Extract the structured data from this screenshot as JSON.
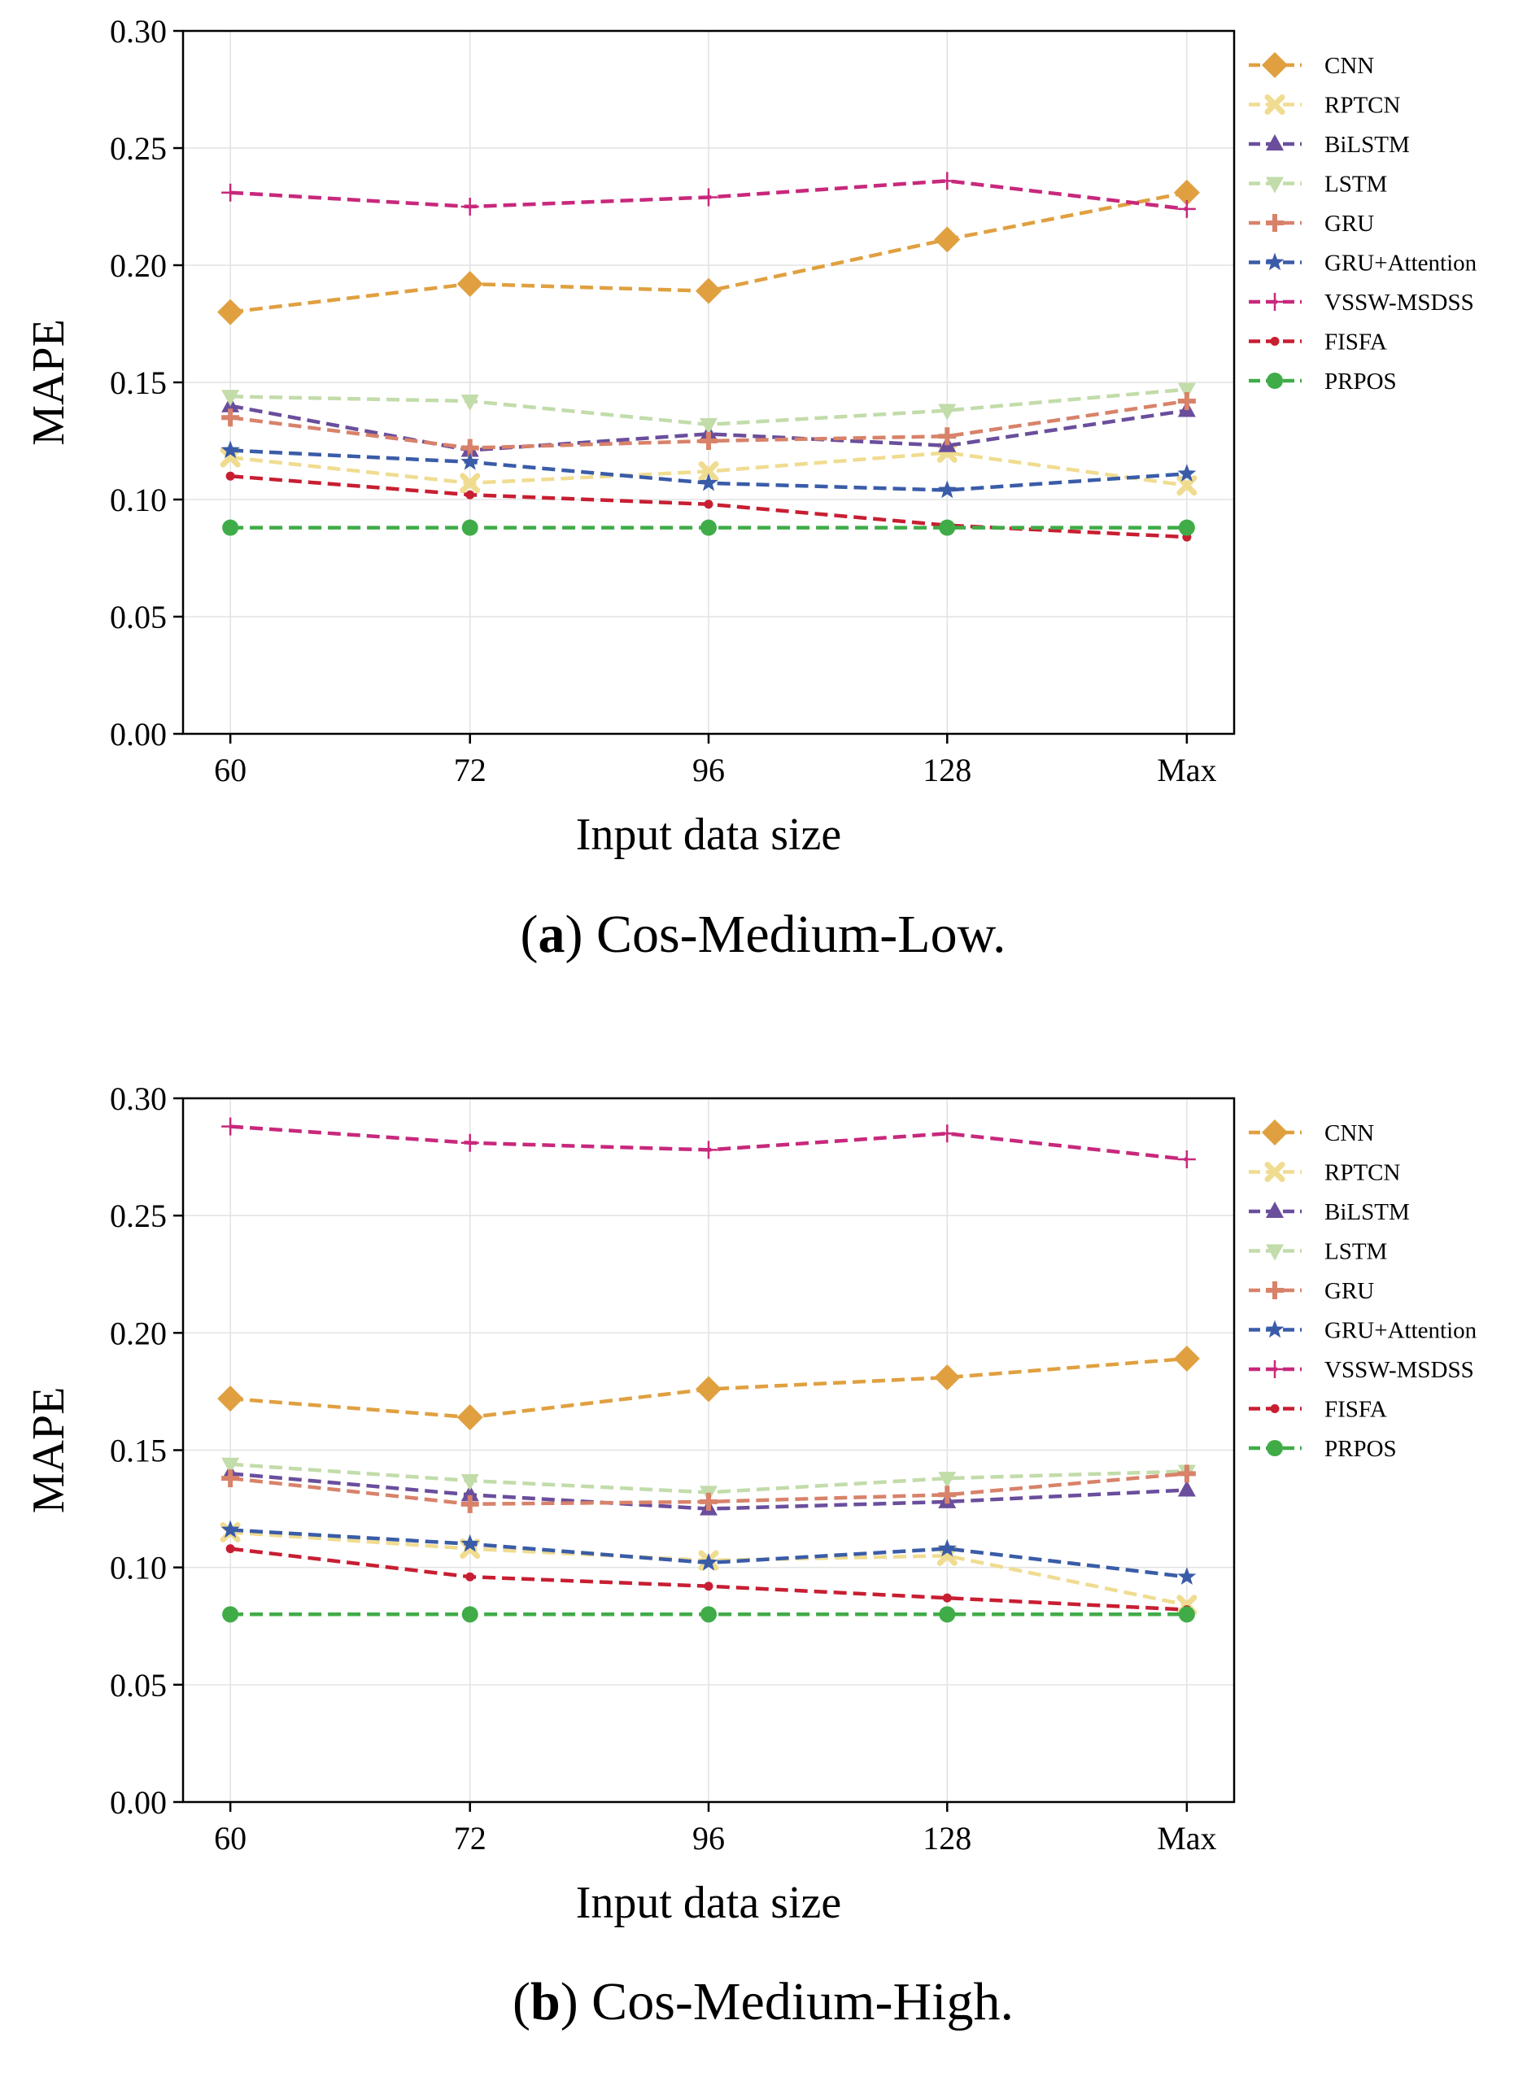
{
  "chart_data": [
    {
      "type": "line",
      "caption_letter": "a",
      "caption_text": "Cos-Medium-Low.",
      "xlabel": "Input data size",
      "ylabel": "MAPE",
      "categories": [
        "60",
        "72",
        "96",
        "128",
        "Max"
      ],
      "ylim": [
        0.0,
        0.3
      ],
      "yticks": [
        "0.00",
        "0.05",
        "0.10",
        "0.15",
        "0.20",
        "0.25",
        "0.30"
      ],
      "grid": true,
      "legend_position": "outside-right",
      "series": [
        {
          "name": "CNN",
          "color": "#e0a040",
          "marker": "diamond",
          "values": [
            0.18,
            0.192,
            0.189,
            0.211,
            0.231
          ]
        },
        {
          "name": "RPTCN",
          "color": "#f0dc90",
          "marker": "x",
          "values": [
            0.118,
            0.107,
            0.112,
            0.12,
            0.106
          ]
        },
        {
          "name": "BiLSTM",
          "color": "#6a4e9c",
          "marker": "triangle-up",
          "values": [
            0.14,
            0.121,
            0.128,
            0.123,
            0.138
          ]
        },
        {
          "name": "LSTM",
          "color": "#c2dcaa",
          "marker": "triangle-down",
          "values": [
            0.144,
            0.142,
            0.132,
            0.138,
            0.147
          ]
        },
        {
          "name": "GRU",
          "color": "#d8826a",
          "marker": "plus-thick",
          "values": [
            0.135,
            0.122,
            0.125,
            0.127,
            0.142
          ]
        },
        {
          "name": "GRU+Attention",
          "color": "#3a5ca8",
          "marker": "star",
          "values": [
            0.121,
            0.116,
            0.107,
            0.104,
            0.111
          ]
        },
        {
          "name": "VSSW-MSDSS",
          "color": "#c8287c",
          "marker": "plus",
          "values": [
            0.231,
            0.225,
            0.229,
            0.236,
            0.224
          ]
        },
        {
          "name": "FISFA",
          "color": "#c81e32",
          "marker": "point",
          "values": [
            0.11,
            0.102,
            0.098,
            0.089,
            0.084
          ]
        },
        {
          "name": "PRPOS",
          "color": "#40ac48",
          "marker": "circle",
          "values": [
            0.088,
            0.088,
            0.088,
            0.088,
            0.088
          ]
        }
      ]
    },
    {
      "type": "line",
      "caption_letter": "b",
      "caption_text": "Cos-Medium-High.",
      "xlabel": "Input data size",
      "ylabel": "MAPE",
      "categories": [
        "60",
        "72",
        "96",
        "128",
        "Max"
      ],
      "ylim": [
        0.0,
        0.3
      ],
      "yticks": [
        "0.00",
        "0.05",
        "0.10",
        "0.15",
        "0.20",
        "0.25",
        "0.30"
      ],
      "grid": true,
      "legend_position": "outside-right",
      "series": [
        {
          "name": "CNN",
          "color": "#e0a040",
          "marker": "diamond",
          "values": [
            0.172,
            0.164,
            0.176,
            0.181,
            0.189
          ]
        },
        {
          "name": "RPTCN",
          "color": "#f0dc90",
          "marker": "x",
          "values": [
            0.115,
            0.108,
            0.103,
            0.105,
            0.084
          ]
        },
        {
          "name": "BiLSTM",
          "color": "#6a4e9c",
          "marker": "triangle-up",
          "values": [
            0.14,
            0.131,
            0.125,
            0.128,
            0.133
          ]
        },
        {
          "name": "LSTM",
          "color": "#c2dcaa",
          "marker": "triangle-down",
          "values": [
            0.144,
            0.137,
            0.132,
            0.138,
            0.141
          ]
        },
        {
          "name": "GRU",
          "color": "#d8826a",
          "marker": "plus-thick",
          "values": [
            0.138,
            0.127,
            0.128,
            0.131,
            0.14
          ]
        },
        {
          "name": "GRU+Attention",
          "color": "#3a5ca8",
          "marker": "star",
          "values": [
            0.116,
            0.11,
            0.102,
            0.108,
            0.096
          ]
        },
        {
          "name": "VSSW-MSDSS",
          "color": "#c8287c",
          "marker": "plus",
          "values": [
            0.288,
            0.281,
            0.278,
            0.285,
            0.274
          ]
        },
        {
          "name": "FISFA",
          "color": "#c81e32",
          "marker": "point",
          "values": [
            0.108,
            0.096,
            0.092,
            0.087,
            0.082
          ]
        },
        {
          "name": "PRPOS",
          "color": "#40ac48",
          "marker": "circle",
          "values": [
            0.08,
            0.08,
            0.08,
            0.08,
            0.08
          ]
        }
      ]
    }
  ]
}
